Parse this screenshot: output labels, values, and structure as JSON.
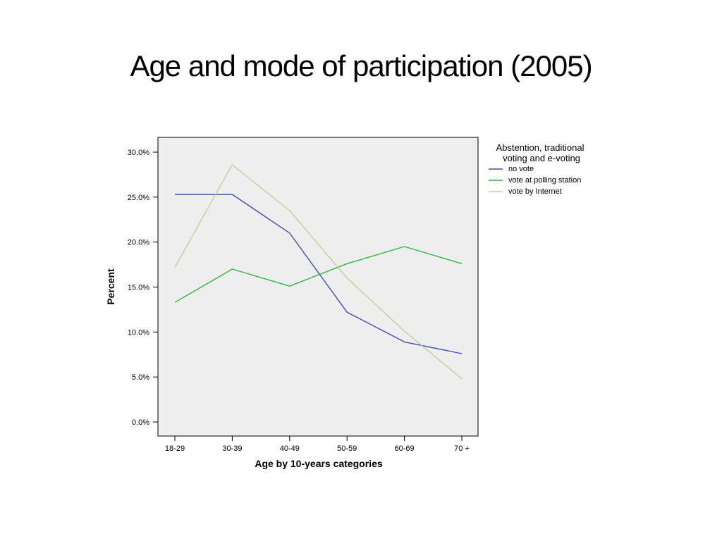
{
  "slide": {
    "title": "Age and mode of participation (2005)"
  },
  "chart_data": {
    "type": "line",
    "title": "",
    "xlabel": "Age by 10-years categories",
    "ylabel": "Percent",
    "categories": [
      "18-29",
      "30-39",
      "40-49",
      "50-59",
      "60-69",
      "70 +"
    ],
    "y_ticks": [
      "0.0%",
      "5.0%",
      "10.0%",
      "15.0%",
      "20.0%",
      "25.0%",
      "30.0%"
    ],
    "ylim": [
      0,
      30
    ],
    "grid": false,
    "legend_placement": "right",
    "legend_title": [
      "Abstention, traditional",
      "voting and e-voting"
    ],
    "series": [
      {
        "name": "no vote",
        "color": "#3b50b2",
        "values": [
          25.3,
          25.3,
          21.0,
          12.2,
          8.9,
          7.6
        ]
      },
      {
        "name": "vote at polling station",
        "color": "#2db83d",
        "values": [
          13.3,
          17.0,
          15.1,
          17.6,
          19.5,
          17.6
        ]
      },
      {
        "name": "vote by Internet",
        "color": "#c9cc98",
        "values": [
          17.2,
          28.6,
          23.5,
          16.0,
          10.1,
          4.8
        ]
      }
    ],
    "plot_background": "#eeeeee"
  }
}
